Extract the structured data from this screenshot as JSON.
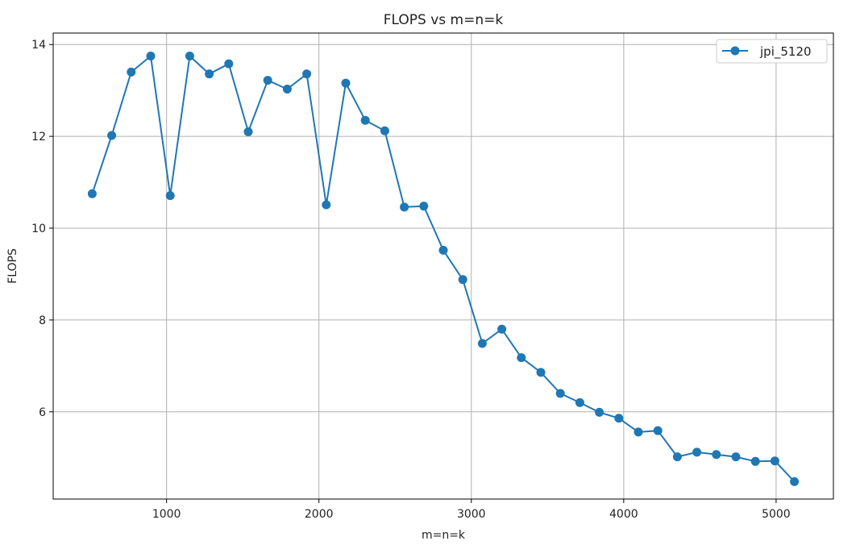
{
  "chart_data": {
    "type": "line",
    "title": "FLOPS vs m=n=k",
    "xlabel": "m=n=k",
    "ylabel": "FLOPS",
    "xlim": [
      256,
      5376
    ],
    "ylim": [
      4.1,
      14.25
    ],
    "xticks": [
      1000,
      2000,
      3000,
      4000,
      5000
    ],
    "yticks": [
      6,
      8,
      10,
      12,
      14
    ],
    "grid": true,
    "legend_position": "top-right",
    "series": [
      {
        "name": "jpi_5120",
        "color": "#1f77b4",
        "marker": "circle",
        "x": [
          512,
          640,
          768,
          896,
          1024,
          1152,
          1280,
          1408,
          1536,
          1664,
          1792,
          1920,
          2048,
          2176,
          2304,
          2432,
          2560,
          2688,
          2816,
          2944,
          3072,
          3200,
          3328,
          3456,
          3584,
          3712,
          3840,
          3968,
          4096,
          4224,
          4352,
          4480,
          4608,
          4736,
          4864,
          4992,
          5120
        ],
        "y": [
          10.75,
          12.02,
          13.4,
          13.75,
          10.71,
          13.75,
          13.36,
          13.58,
          12.1,
          13.22,
          13.03,
          13.36,
          10.51,
          13.16,
          12.35,
          12.12,
          10.46,
          10.48,
          9.52,
          8.88,
          7.49,
          7.8,
          7.18,
          6.86,
          6.4,
          6.2,
          5.99,
          5.86,
          5.56,
          5.59,
          5.02,
          5.12,
          5.07,
          5.02,
          4.92,
          4.93,
          4.48
        ]
      }
    ]
  }
}
